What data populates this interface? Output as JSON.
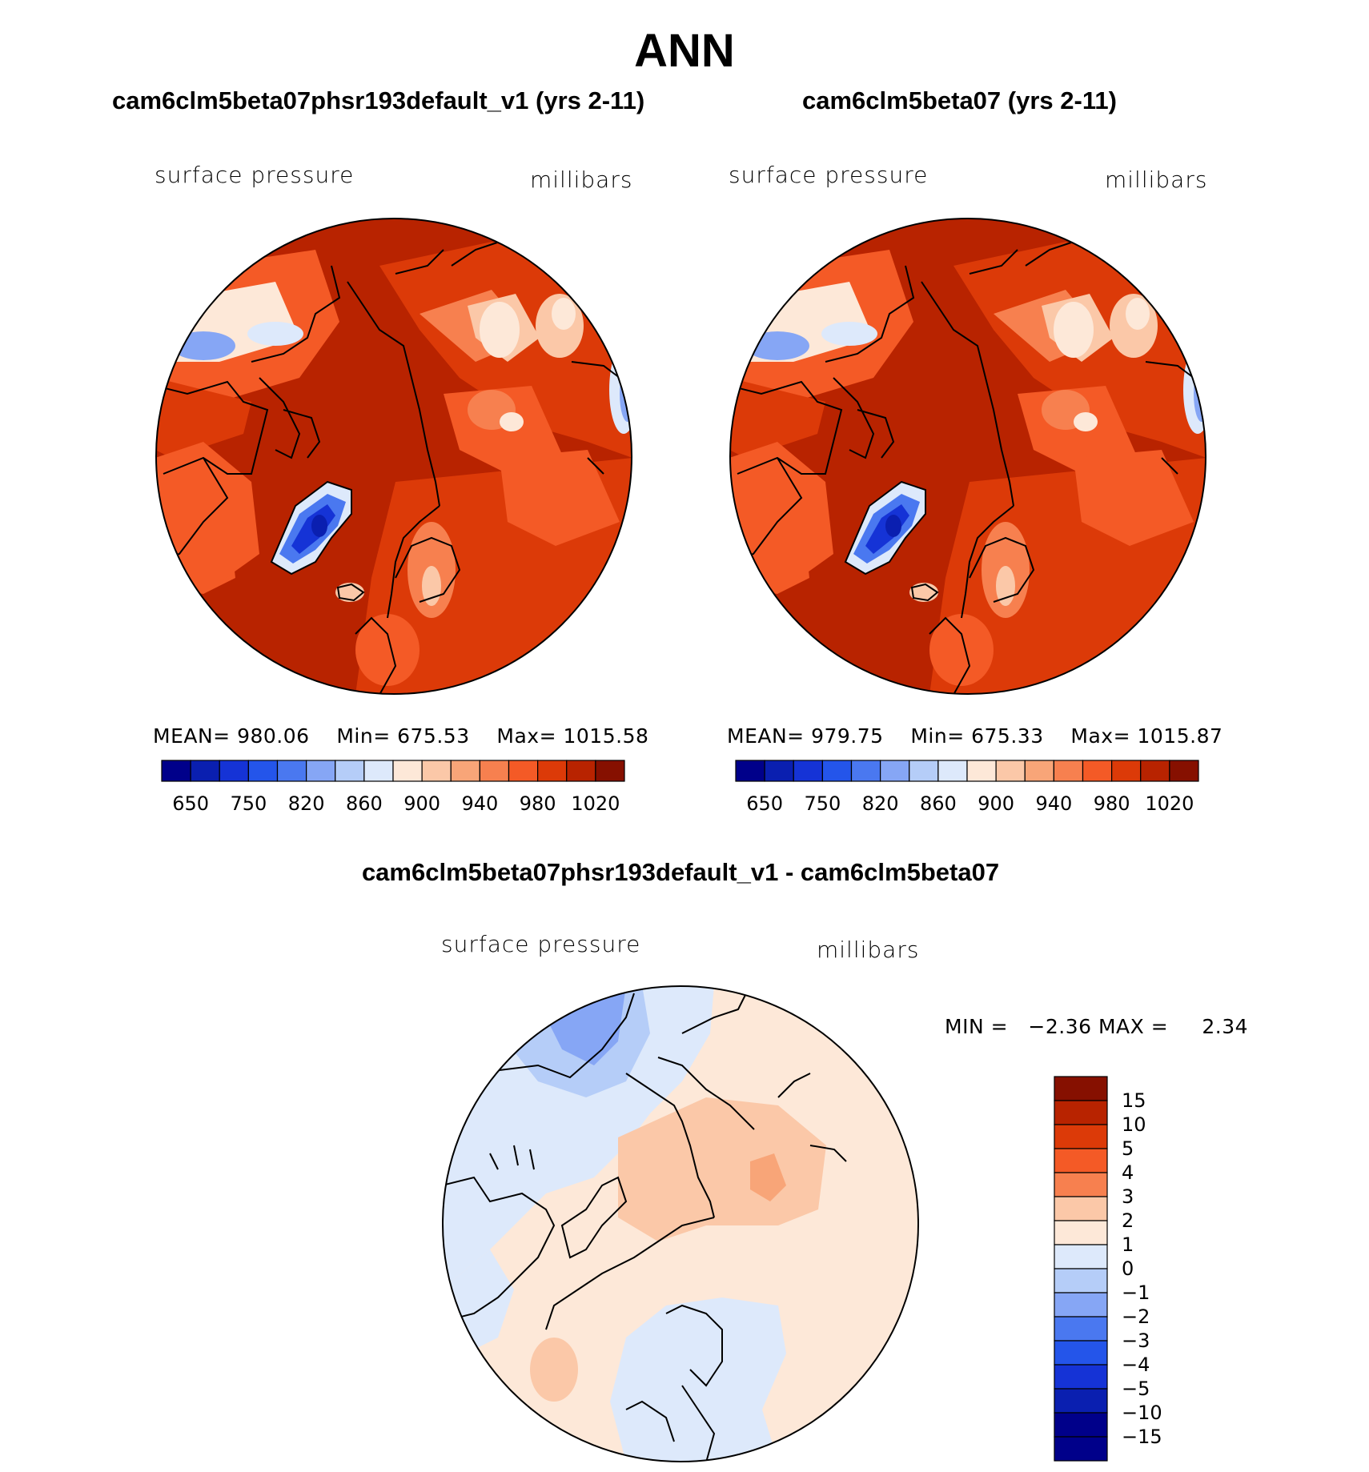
{
  "header": {
    "title": "ANN"
  },
  "panels": [
    {
      "title": "cam6clm5beta07phsr193default_v1 (yrs 2-11)",
      "variable": "surface pressure",
      "units": "millibars",
      "stats": {
        "mean_label": "MEAN=",
        "mean": "980.06",
        "min_label": "Min=",
        "min": "675.53",
        "max_label": "Max=",
        "max": "1015.58"
      }
    },
    {
      "title": "cam6clm5beta07 (yrs 2-11)",
      "variable": "surface pressure",
      "units": "millibars",
      "stats": {
        "mean_label": "MEAN=",
        "mean": "979.75",
        "min_label": "Min=",
        "min": "675.33",
        "max_label": "Max=",
        "max": "1015.87"
      }
    }
  ],
  "diff": {
    "title": "cam6clm5beta07phsr193default_v1 - cam6clm5beta07",
    "variable": "surface pressure",
    "units": "millibars",
    "min_label": "MIN =",
    "min": "−2.36",
    "max_label": "MAX =",
    "max": "2.34"
  },
  "chart_data": [
    {
      "type": "heatmap",
      "projection": "north polar stereographic",
      "title": "cam6clm5beta07phsr193default_v1 (yrs 2-11)",
      "variable": "surface pressure",
      "units": "millibars",
      "colorbar_ticks": [
        "650",
        "750",
        "820",
        "860",
        "900",
        "940",
        "980",
        "1020"
      ],
      "colorbar_colors": [
        "#00008a",
        "#0a1fb0",
        "#1533d6",
        "#2455ea",
        "#4a78f0",
        "#86a6f5",
        "#b5cdf8",
        "#dde9fb",
        "#fde8d8",
        "#fbc8a8",
        "#f8a578",
        "#f7804f",
        "#f45a26",
        "#dc3a08",
        "#b82300",
        "#861000"
      ],
      "mean": 980.06,
      "min": 675.53,
      "max": 1015.58
    },
    {
      "type": "heatmap",
      "projection": "north polar stereographic",
      "title": "cam6clm5beta07 (yrs 2-11)",
      "variable": "surface pressure",
      "units": "millibars",
      "colorbar_ticks": [
        "650",
        "750",
        "820",
        "860",
        "900",
        "940",
        "980",
        "1020"
      ],
      "colorbar_colors": [
        "#00008a",
        "#0a1fb0",
        "#1533d6",
        "#2455ea",
        "#4a78f0",
        "#86a6f5",
        "#b5cdf8",
        "#dde9fb",
        "#fde8d8",
        "#fbc8a8",
        "#f8a578",
        "#f7804f",
        "#f45a26",
        "#dc3a08",
        "#b82300",
        "#861000"
      ],
      "mean": 979.75,
      "min": 675.33,
      "max": 1015.87
    },
    {
      "type": "heatmap",
      "projection": "north polar stereographic",
      "title": "cam6clm5beta07phsr193default_v1 - cam6clm5beta07",
      "variable": "surface pressure",
      "units": "millibars",
      "colorbar_ticks": [
        "15",
        "10",
        "5",
        "4",
        "3",
        "2",
        "1",
        "0",
        "−1",
        "−2",
        "−3",
        "−4",
        "−5",
        "−10",
        "−15"
      ],
      "colorbar_colors": [
        "#861000",
        "#b82300",
        "#dc3a08",
        "#f45a26",
        "#f7804f",
        "#fbc8a8",
        "#fde8d8",
        "#dde9fb",
        "#b5cdf8",
        "#86a6f5",
        "#4a78f0",
        "#2455ea",
        "#1533d6",
        "#0a1fb0",
        "#00008a",
        "#00008a"
      ],
      "min": -2.36,
      "max": 2.34
    }
  ]
}
